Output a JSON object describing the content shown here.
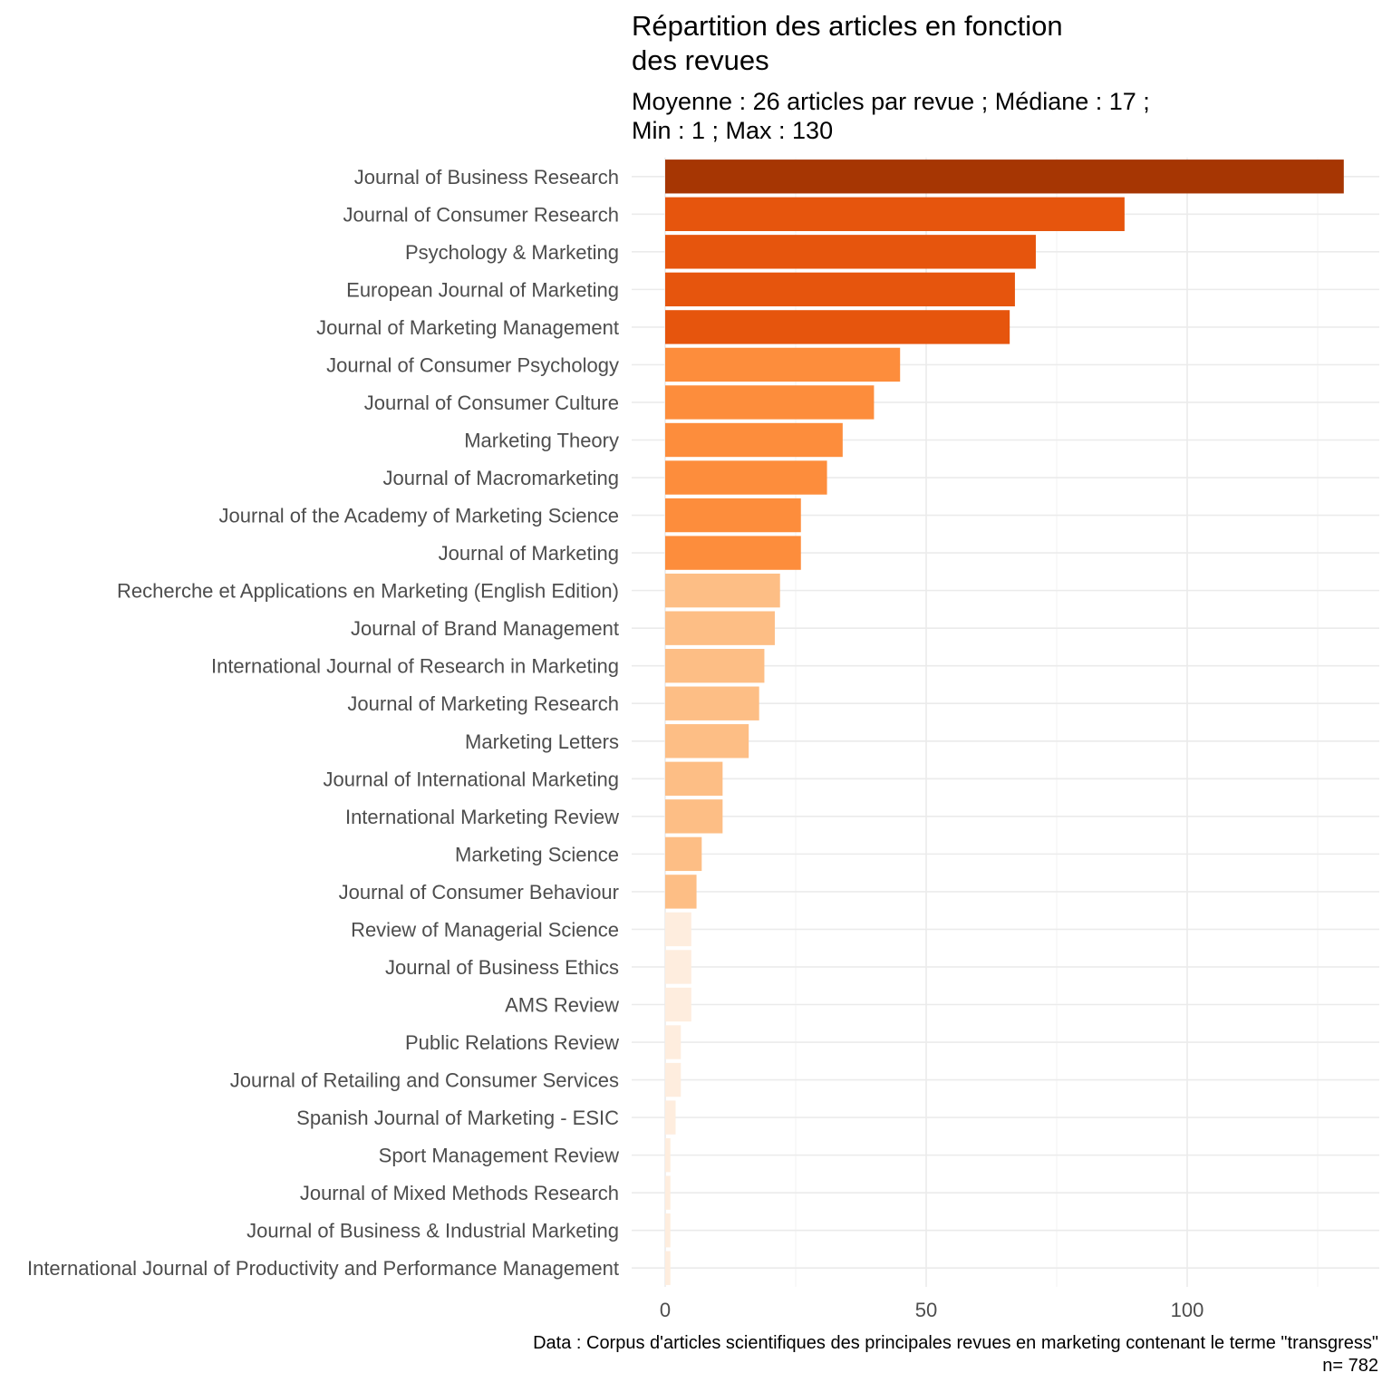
{
  "chart_data": {
    "type": "bar",
    "orientation": "horizontal",
    "title": "Répartition des articles en fonction\ndes revues",
    "subtitle": "Moyenne : 26 articles par revue ; Médiane : 17 ;\nMin : 1 ; Max : 130",
    "caption": "Data : Corpus d'articles scientifiques des principales revues en marketing contenant le terme \"transgress\"\nn= 782",
    "xlim": [
      0,
      136
    ],
    "x_ticks": [
      0,
      50,
      100
    ],
    "grid": true,
    "categories": [
      "Journal of Business Research",
      "Journal of Consumer Research",
      "Psychology & Marketing",
      "European Journal of Marketing",
      "Journal of Marketing Management",
      "Journal of Consumer Psychology",
      "Journal of Consumer Culture",
      "Marketing Theory",
      "Journal of Macromarketing",
      "Journal of the Academy of Marketing Science",
      "Journal of Marketing",
      "Recherche et Applications en Marketing (English Edition)",
      "Journal of Brand Management",
      "International Journal of Research in Marketing",
      "Journal of Marketing Research",
      "Marketing Letters",
      "Journal of International Marketing",
      "International Marketing Review",
      "Marketing Science",
      "Journal of Consumer Behaviour",
      "Review of Managerial Science",
      "Journal of Business Ethics",
      "AMS Review",
      "Public Relations Review",
      "Journal of Retailing and Consumer Services",
      "Spanish Journal of Marketing - ESIC",
      "Sport Management Review",
      "Journal of Mixed Methods Research",
      "Journal of Business & Industrial Marketing",
      "International Journal of Productivity and Performance Management"
    ],
    "values": [
      130,
      88,
      71,
      67,
      66,
      45,
      40,
      34,
      31,
      26,
      26,
      22,
      21,
      19,
      18,
      16,
      11,
      11,
      7,
      6,
      5,
      5,
      5,
      3,
      3,
      2,
      1,
      1,
      1,
      1
    ],
    "color_classes": [
      {
        "min": 100,
        "color": "#a63603"
      },
      {
        "min": 50,
        "color": "#e6550d"
      },
      {
        "min": 25,
        "color": "#fd8d3c"
      },
      {
        "min": 6,
        "color": "#fdbe85"
      },
      {
        "min": 0,
        "color": "#feedde"
      }
    ]
  }
}
